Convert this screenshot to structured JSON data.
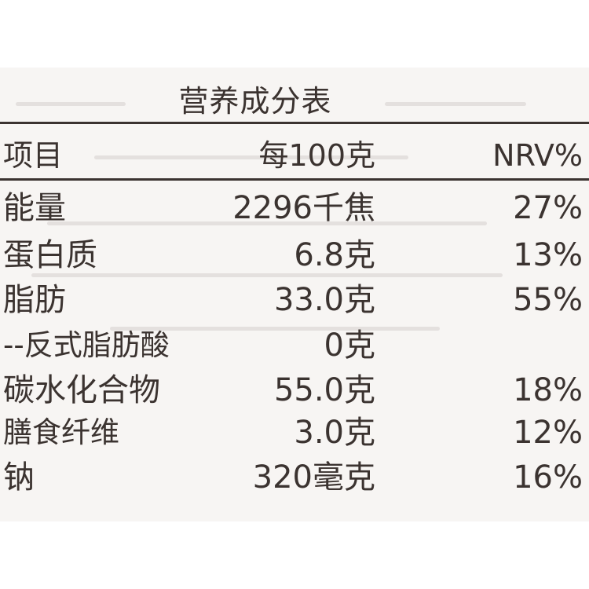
{
  "title": "营养成分表",
  "header": {
    "item": "项目",
    "amount": "每100克",
    "nrv": "NRV%"
  },
  "rows": [
    {
      "item": "能量",
      "amount": "2296千焦",
      "nrv": "27%"
    },
    {
      "item": "蛋白质",
      "amount": "6.8克",
      "nrv": "13%"
    },
    {
      "item": "脂肪",
      "amount": "33.0克",
      "nrv": "55%"
    },
    {
      "item": "--反式脂肪酸",
      "amount": "0克",
      "nrv": ""
    },
    {
      "item": "碳水化合物",
      "amount": "55.0克",
      "nrv": "18%"
    },
    {
      "item": "膳食纤维",
      "amount": "3.0克",
      "nrv": "12%"
    },
    {
      "item": "钠",
      "amount": "320毫克",
      "nrv": "16%"
    }
  ],
  "colors": {
    "ink": "#3b3330",
    "panel": "#f7f5f3",
    "background": "#ffffff"
  }
}
